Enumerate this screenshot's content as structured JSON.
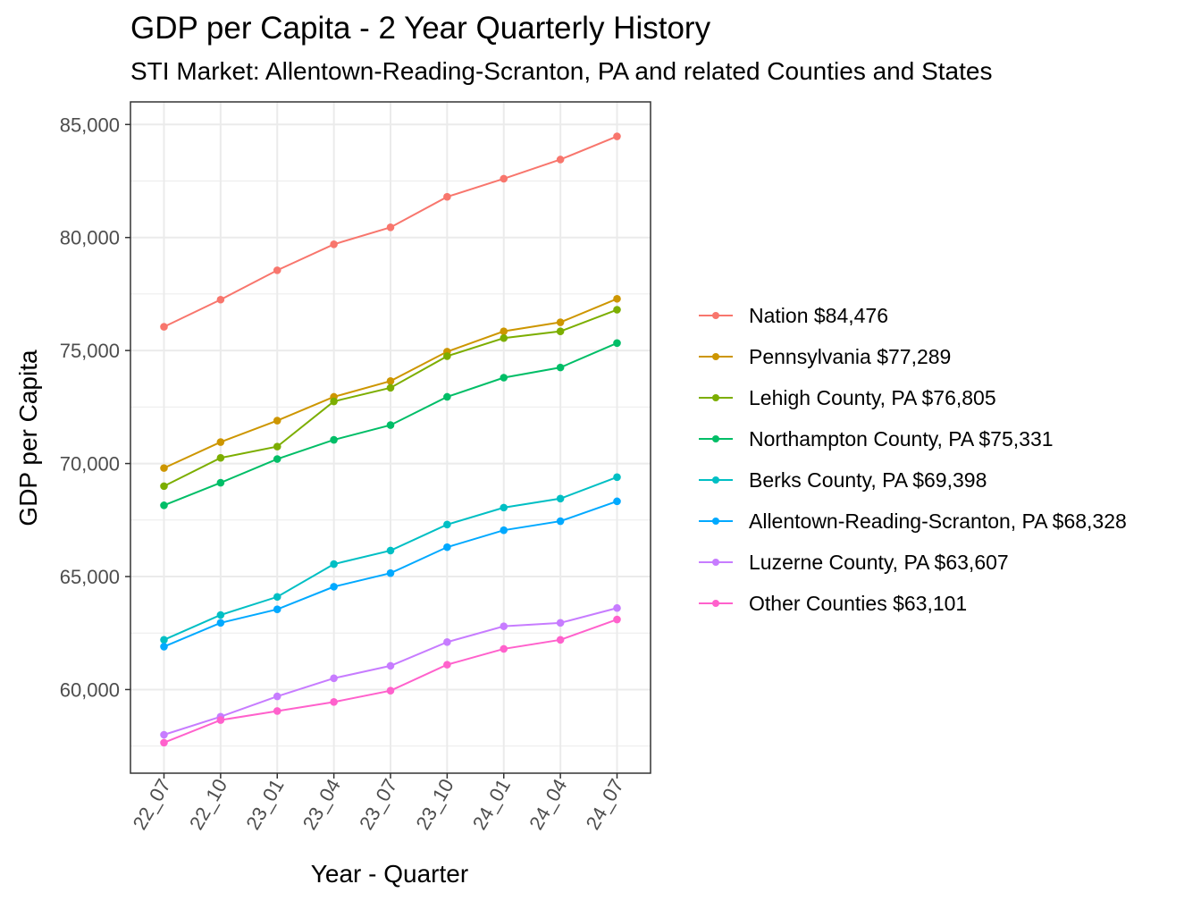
{
  "title": "GDP per Capita - 2 Year Quarterly History",
  "subtitle": "STI Market: Allentown-Reading-Scranton, PA and related Counties and States",
  "chart_data": {
    "type": "line",
    "title": "GDP per Capita - 2 Year Quarterly History",
    "subtitle": "STI Market: Allentown-Reading-Scranton, PA and related Counties and States",
    "xlabel": "Year - Quarter",
    "ylabel": "GDP per Capita",
    "categories": [
      "22_07",
      "22_10",
      "23_01",
      "23_04",
      "23_07",
      "23_10",
      "24_01",
      "24_04",
      "24_07"
    ],
    "ylim": [
      56300,
      86000
    ],
    "yticks": [
      60000,
      65000,
      70000,
      75000,
      80000,
      85000
    ],
    "ytick_labels": [
      "60,000",
      "65,000",
      "70,000",
      "75,000",
      "80,000",
      "85,000"
    ],
    "grid": true,
    "legend_position": "right",
    "series": [
      {
        "name": "Nation $84,476",
        "color": "#F8766D",
        "values": [
          76050,
          77250,
          78550,
          79700,
          80450,
          81800,
          82600,
          83450,
          84476
        ]
      },
      {
        "name": "Pennsylvania $77,289",
        "color": "#CD9600",
        "values": [
          69800,
          70950,
          71900,
          72950,
          73650,
          74950,
          75850,
          76250,
          77289
        ]
      },
      {
        "name": "Lehigh County, PA $76,805",
        "color": "#7CAE00",
        "values": [
          69000,
          70250,
          70750,
          72750,
          73350,
          74750,
          75550,
          75850,
          76805
        ]
      },
      {
        "name": "Northampton County, PA $75,331",
        "color": "#00BE67",
        "values": [
          68150,
          69150,
          70200,
          71050,
          71700,
          72950,
          73800,
          74250,
          75331
        ]
      },
      {
        "name": "Berks County, PA $69,398",
        "color": "#00BFC4",
        "values": [
          62200,
          63300,
          64100,
          65550,
          66150,
          67300,
          68050,
          68450,
          69398
        ]
      },
      {
        "name": "Allentown-Reading-Scranton, PA $68,328",
        "color": "#00A9FF",
        "values": [
          61900,
          62950,
          63550,
          64550,
          65150,
          66300,
          67050,
          67450,
          68328
        ]
      },
      {
        "name": "Luzerne County, PA $63,607",
        "color": "#C77CFF",
        "values": [
          58000,
          58800,
          59700,
          60500,
          61050,
          62100,
          62800,
          62950,
          63607
        ]
      },
      {
        "name": "Other Counties $63,101",
        "color": "#FF61CC",
        "values": [
          57650,
          58650,
          59050,
          59450,
          59950,
          61100,
          61800,
          62200,
          63101
        ]
      }
    ]
  }
}
